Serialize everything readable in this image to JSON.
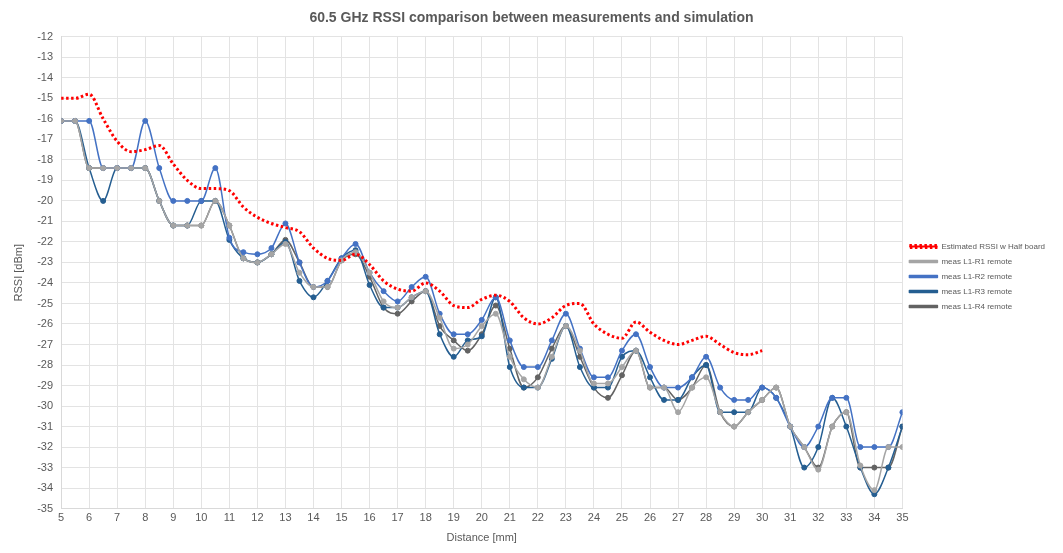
{
  "chart_data": {
    "type": "line",
    "title": "60.5 GHz RSSI comparison between measurements and simulation",
    "xlabel": "Distance [mm]",
    "ylabel": "RSSI [dBm]",
    "x": [
      5,
      5.5,
      6,
      6.5,
      7,
      7.5,
      8,
      8.5,
      9,
      9.5,
      10,
      10.5,
      11,
      11.5,
      12,
      12.5,
      13,
      13.5,
      14,
      14.5,
      15,
      15.5,
      16,
      16.5,
      17,
      17.5,
      18,
      18.5,
      19,
      19.5,
      20,
      20.5,
      21,
      21.5,
      22,
      22.5,
      23,
      23.5,
      24,
      24.5,
      25,
      25.5,
      26,
      26.5,
      27,
      27.5,
      28,
      28.5,
      29,
      29.5,
      30,
      30.5,
      31,
      31.5,
      32,
      32.5,
      33,
      33.5,
      34,
      34.5,
      35
    ],
    "xlim": [
      5,
      35
    ],
    "xticks": [
      5,
      6,
      7,
      8,
      9,
      10,
      11,
      12,
      13,
      14,
      15,
      16,
      17,
      18,
      19,
      20,
      21,
      22,
      23,
      24,
      25,
      26,
      27,
      28,
      29,
      30,
      31,
      32,
      33,
      34,
      35
    ],
    "ylim": [
      -35,
      -12
    ],
    "yticks": [
      -35,
      -34,
      -33,
      -32,
      -31,
      -30,
      -29,
      -28,
      -27,
      -26,
      -25,
      -24,
      -23,
      -22,
      -21,
      -20,
      -19,
      -18,
      -17,
      -16,
      -15,
      -14,
      -13,
      -12
    ],
    "grid": true,
    "legend": "right",
    "marker": "circle",
    "line_style": "solid",
    "series": [
      {
        "name": "Estimated RSSI w Half board",
        "color": "#ff0000",
        "marker": "none",
        "line_style": "dotted",
        "x": [
          5,
          5.5,
          6,
          6.5,
          7,
          7.5,
          8,
          8.5,
          9,
          9.5,
          10,
          10.5,
          11,
          11.5,
          12,
          12.5,
          13,
          13.5,
          14,
          14.5,
          15,
          15.5,
          16,
          16.5,
          17,
          17.5,
          18,
          18.5,
          19,
          19.5,
          20,
          20.5,
          21,
          21.5,
          22,
          22.5,
          23,
          23.5,
          24,
          24.5,
          25,
          25.5,
          26,
          26.5,
          27,
          27.5,
          28,
          28.5,
          29,
          29.5,
          30
        ],
        "values": [
          -15,
          -15,
          -14.8,
          -16,
          -17.1,
          -17.6,
          -17.5,
          -17.3,
          -18.2,
          -19,
          -19.4,
          -19.4,
          -19.5,
          -20.3,
          -20.8,
          -21.1,
          -21.3,
          -21.5,
          -22.3,
          -22.8,
          -22.9,
          -22.6,
          -23.1,
          -23.9,
          -24.3,
          -24.4,
          -24,
          -24.4,
          -25.1,
          -25.2,
          -24.8,
          -24.6,
          -24.9,
          -25.7,
          -26,
          -25.7,
          -25.1,
          -25,
          -26,
          -26.5,
          -26.7,
          -25.9,
          -26.4,
          -26.8,
          -27,
          -26.8,
          -26.6,
          -27,
          -27.4,
          -27.5,
          -27.3
        ]
      },
      {
        "name": "meas L1-R1 remote",
        "color": "#a5a5a5",
        "values": [
          -16.1,
          -16.1,
          -18.4,
          -18.4,
          -18.4,
          -18.4,
          -18.4,
          -20,
          -21.2,
          -21.2,
          -21.2,
          -20,
          -21.2,
          -22.8,
          -23,
          -22.6,
          -22.1,
          -23.5,
          -24.2,
          -24.2,
          -22.9,
          -22.5,
          -23.5,
          -24.9,
          -25.2,
          -24.7,
          -24.4,
          -25.7,
          -27.2,
          -27,
          -26.1,
          -25.5,
          -27.6,
          -28.7,
          -29.1,
          -27.6,
          -26.1,
          -27.3,
          -28.9,
          -28.9,
          -28.1,
          -27.3,
          -29.1,
          -29.1,
          -30.3,
          -29.1,
          -28.6,
          -30.3,
          -31,
          -30.3,
          -29.7,
          -29.1,
          -31,
          -32,
          -33.1,
          -31,
          -30.3,
          -32.9,
          -34.1,
          -32,
          -32
        ]
      },
      {
        "name": "meas L1-R2 remote",
        "color": "#4472c4",
        "values": [
          -16.1,
          -16.1,
          -16.1,
          -18.4,
          -18.4,
          -18.4,
          -16.1,
          -18.4,
          -20,
          -20,
          -20,
          -18.4,
          -21.8,
          -22.5,
          -22.6,
          -22.3,
          -21.1,
          -23,
          -24.2,
          -23.9,
          -22.8,
          -22.1,
          -23.5,
          -24.4,
          -24.9,
          -24.2,
          -23.7,
          -25.5,
          -26.5,
          -26.5,
          -25.8,
          -24.7,
          -26.8,
          -28.1,
          -28.1,
          -26.8,
          -25.5,
          -27.2,
          -28.6,
          -28.6,
          -27.3,
          -26.5,
          -28.1,
          -29.1,
          -29.1,
          -28.6,
          -27.6,
          -29.1,
          -29.7,
          -29.7,
          -29.1,
          -29.6,
          -31,
          -32,
          -31,
          -29.6,
          -29.6,
          -32,
          -32,
          -32,
          -30.3
        ]
      },
      {
        "name": "meas L1-R3 remote",
        "color": "#255e91",
        "values": [
          -16.1,
          -16.1,
          -18.4,
          -20,
          -18.4,
          -18.4,
          -18.4,
          -20,
          -21.2,
          -21.2,
          -20,
          -20,
          -21.9,
          -22.8,
          -23,
          -22.6,
          -22,
          -23.9,
          -24.7,
          -23.9,
          -22.8,
          -22.4,
          -24.1,
          -25.2,
          -25.2,
          -24.7,
          -24.4,
          -26.5,
          -27.6,
          -26.8,
          -26.6,
          -24.7,
          -28.1,
          -29.1,
          -29.1,
          -27.7,
          -26.1,
          -28.1,
          -29.1,
          -29.1,
          -27.6,
          -27.3,
          -28.6,
          -29.7,
          -29.7,
          -28.6,
          -28,
          -30.3,
          -30.3,
          -30.3,
          -29.1,
          -29.6,
          -31,
          -33,
          -32,
          -29.6,
          -31,
          -33,
          -34.3,
          -33,
          -31
        ]
      },
      {
        "name": "meas L1-R4 remote",
        "color": "#636363",
        "values": [
          -16.1,
          -16.1,
          -18.4,
          -18.4,
          -18.4,
          -18.4,
          -18.4,
          -20,
          -21.2,
          -21.2,
          -21.2,
          -20,
          -21.2,
          -22.8,
          -23,
          -22.6,
          -21.9,
          -23,
          -24.2,
          -24.2,
          -22.9,
          -22.6,
          -23.7,
          -25.2,
          -25.5,
          -24.9,
          -24.4,
          -26.1,
          -26.8,
          -27.3,
          -26.5,
          -25.1,
          -27.2,
          -29.1,
          -28.6,
          -27.2,
          -26.1,
          -27.6,
          -29.1,
          -29.6,
          -28.5,
          -27.3,
          -29.1,
          -29.1,
          -29.7,
          -29.1,
          -28,
          -30.3,
          -31,
          -30.3,
          -29.7,
          -29.1,
          -31,
          -32,
          -33,
          -31,
          -30.3,
          -33,
          -33,
          -33,
          -31
        ]
      }
    ]
  }
}
